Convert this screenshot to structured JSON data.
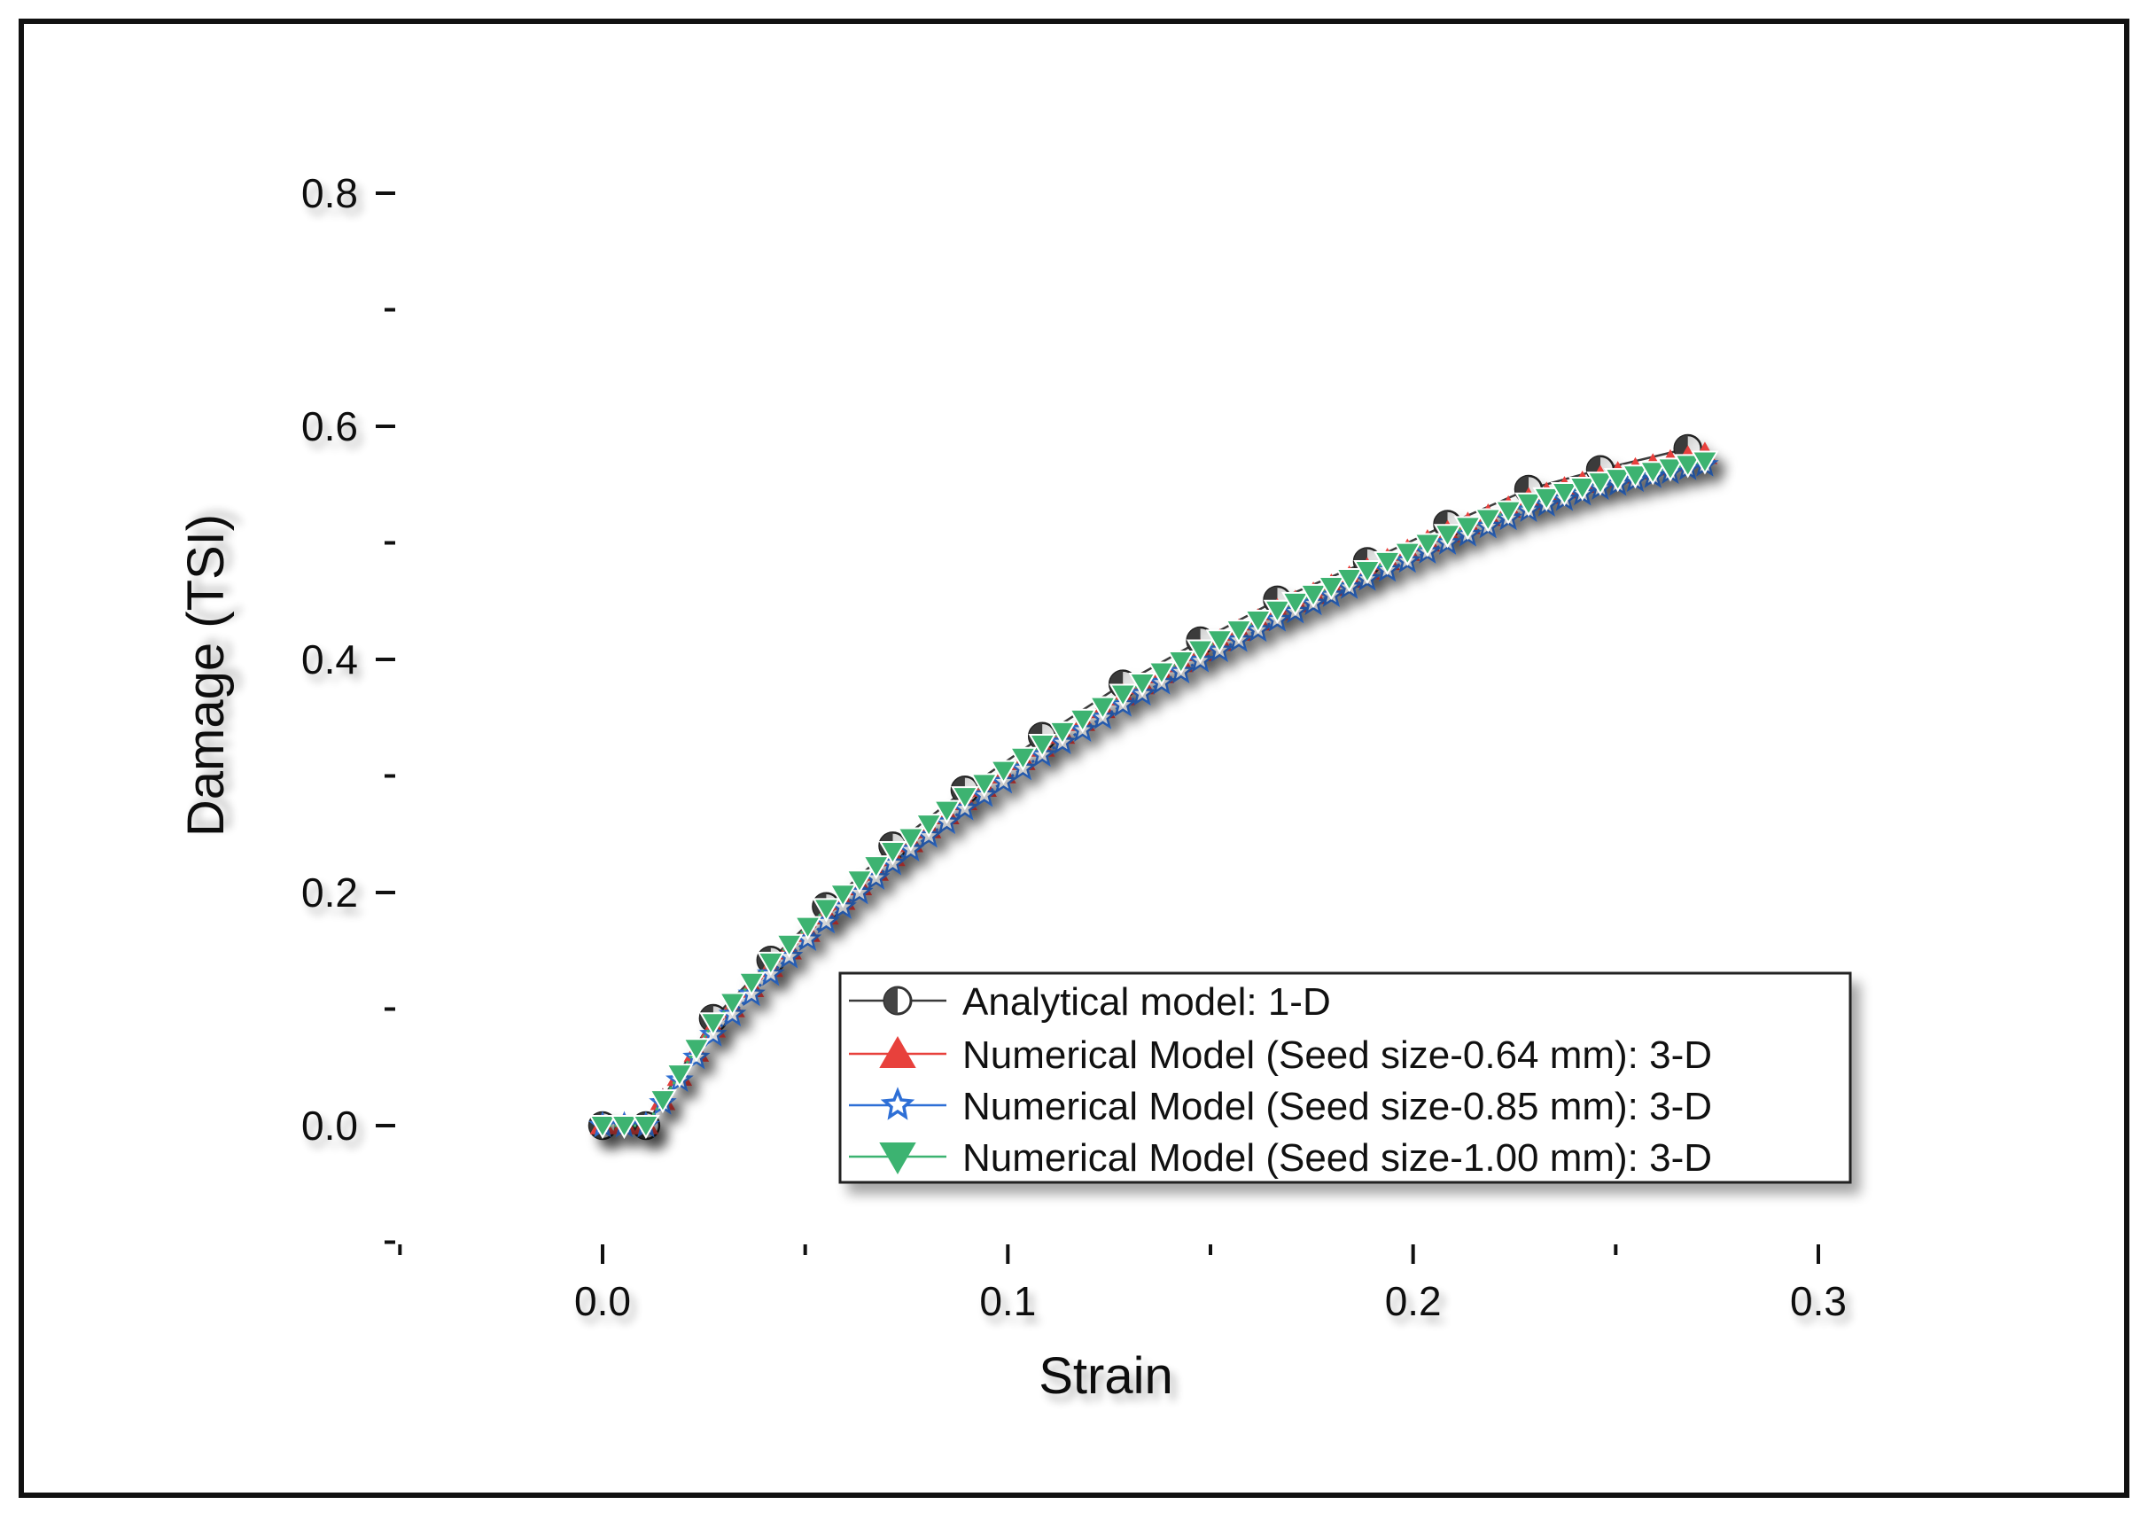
{
  "chart_data": {
    "type": "line",
    "title": "",
    "xlabel": "Strain",
    "ylabel": "Damage (TSI)",
    "xlim": [
      -0.05,
      0.3
    ],
    "ylim": [
      -0.1,
      0.8
    ],
    "x_ticks": [
      "0.0",
      "0.1",
      "0.2",
      "0.3"
    ],
    "x_tick_values": [
      0.0,
      0.1,
      0.2,
      0.3
    ],
    "y_ticks": [
      "0.0",
      "0.2",
      "0.4",
      "0.6",
      "0.8"
    ],
    "y_tick_values": [
      0.0,
      0.2,
      0.4,
      0.6,
      0.8
    ],
    "grid": false,
    "legend_position": "bottom-right",
    "series": [
      {
        "name": "Analytical model: 1-D",
        "color": "#3a3a3a",
        "marker": "half-filled-circle",
        "x": [
          0.0,
          0.0107,
          0.0273,
          0.0415,
          0.0552,
          0.0716,
          0.0894,
          0.1085,
          0.1284,
          0.1475,
          0.1665,
          0.1887,
          0.2085,
          0.2285,
          0.2462,
          0.2678
        ],
        "y": [
          0.0,
          0.0,
          0.092,
          0.142,
          0.188,
          0.24,
          0.288,
          0.334,
          0.379,
          0.416,
          0.451,
          0.484,
          0.516,
          0.546,
          0.563,
          0.581
        ]
      },
      {
        "name": "Numerical Model (Seed size-0.64 mm): 3-D",
        "color": "#e8413c",
        "marker": "triangle-up",
        "x": [
          0.0,
          0.0107,
          0.0273,
          0.0415,
          0.0552,
          0.0716,
          0.0894,
          0.1085,
          0.1284,
          0.1475,
          0.1665,
          0.1887,
          0.2085,
          0.2285,
          0.2462,
          0.2678,
          0.272
        ],
        "y": [
          0.0,
          0.0,
          0.083,
          0.135,
          0.18,
          0.23,
          0.278,
          0.324,
          0.368,
          0.406,
          0.441,
          0.476,
          0.508,
          0.536,
          0.555,
          0.572,
          0.575
        ]
      },
      {
        "name": "Numerical Model (Seed size-0.85 mm): 3-D",
        "color": "#2e6fd6",
        "marker": "star-open",
        "x": [
          0.0,
          0.0107,
          0.0273,
          0.0415,
          0.0552,
          0.0716,
          0.0894,
          0.1085,
          0.1284,
          0.1475,
          0.1665,
          0.1887,
          0.2085,
          0.2285,
          0.2462,
          0.2678,
          0.272
        ],
        "y": [
          0.0,
          0.0,
          0.078,
          0.13,
          0.175,
          0.225,
          0.272,
          0.318,
          0.361,
          0.399,
          0.434,
          0.469,
          0.5,
          0.528,
          0.547,
          0.564,
          0.567
        ]
      },
      {
        "name": "Numerical Model (Seed size-1.00 mm): 3-D",
        "color": "#3cb371",
        "marker": "triangle-down",
        "x": [
          0.0,
          0.0107,
          0.0273,
          0.0415,
          0.0552,
          0.0716,
          0.0894,
          0.1085,
          0.1284,
          0.1475,
          0.1665,
          0.1887,
          0.2085,
          0.2285,
          0.2462,
          0.2678,
          0.272
        ],
        "y": [
          0.0,
          0.0,
          0.088,
          0.14,
          0.186,
          0.235,
          0.282,
          0.327,
          0.37,
          0.408,
          0.442,
          0.476,
          0.507,
          0.534,
          0.552,
          0.567,
          0.57
        ]
      }
    ]
  }
}
